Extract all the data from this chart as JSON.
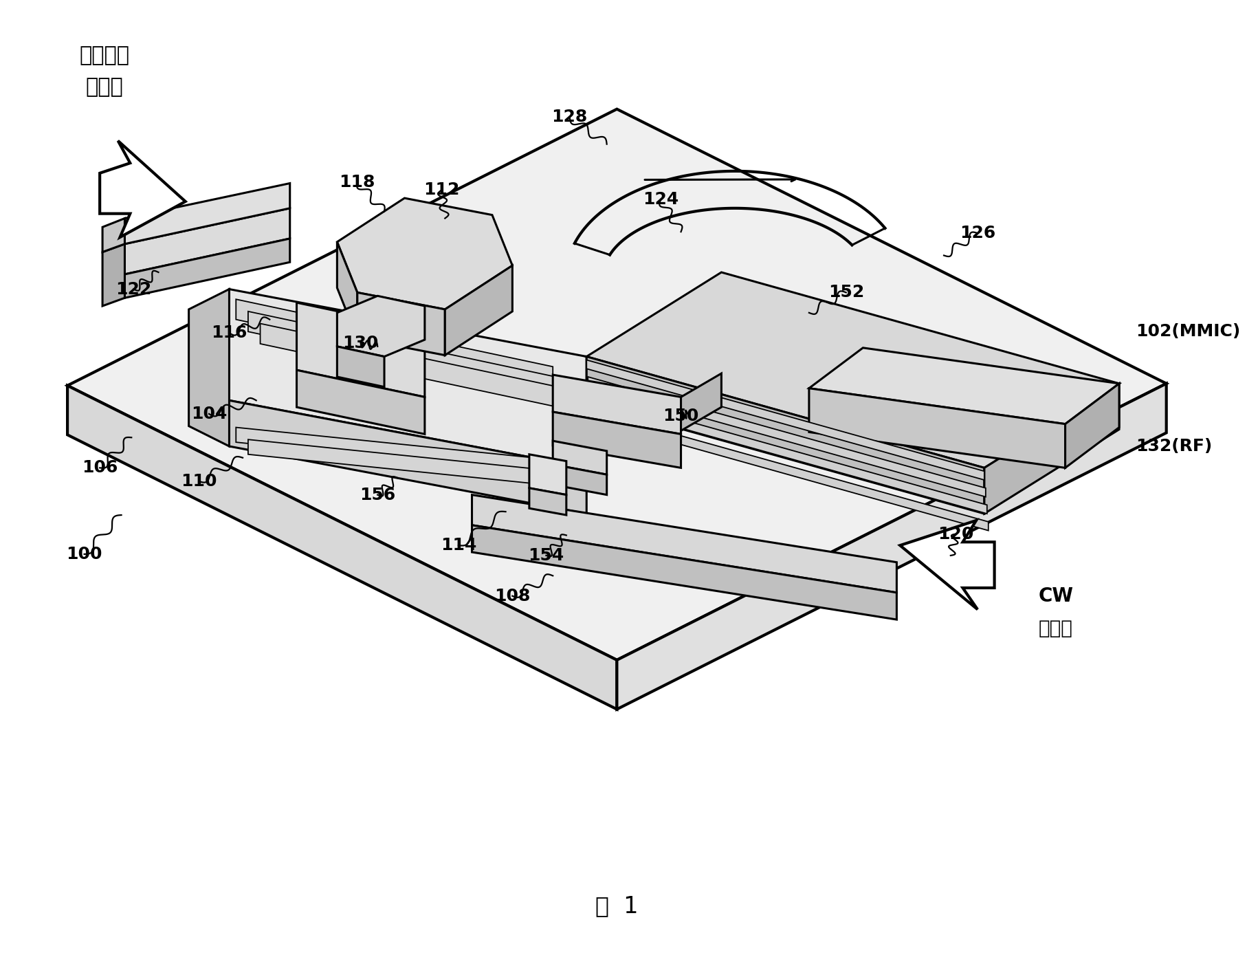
{
  "bg": "#ffffff",
  "lc": "#000000",
  "fig_label": "图  1",
  "cn_out1": "已调制的",
  "cn_out2": "光射出",
  "cn_in1": "CW",
  "cn_in2": "光进入",
  "lw": 2.2,
  "lwt": 3.0,
  "lws": 1.3
}
